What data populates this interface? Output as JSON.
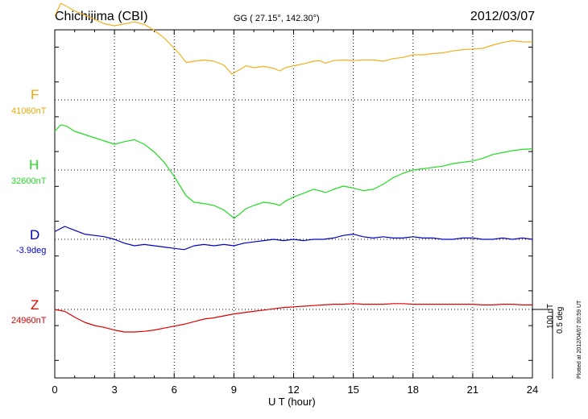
{
  "header": {
    "station": "Chichijima (CBI)",
    "coords": "GG ( 27.15°, 142.30°)",
    "date": "2012/03/07"
  },
  "labels": {
    "F": "F",
    "F_base": "41060nT",
    "H": "H",
    "H_base": "32600nT",
    "D": "D",
    "D_base": "-3.9deg",
    "Z": "Z",
    "Z_base": "24960nT"
  },
  "scale": {
    "line1": "100 nT",
    "line2": "0.5 deg"
  },
  "plotted": "Plotted at 2012/04/07 00:59 UT",
  "chart_data": {
    "type": "line",
    "xlabel": "U T (hour)",
    "xlim": [
      0,
      24
    ],
    "xticks": [
      "0",
      "3",
      "6",
      "9",
      "12",
      "15",
      "18",
      "21",
      "24"
    ],
    "grid": true,
    "series": [
      {
        "name": "F",
        "color": "#f0b020",
        "baseline": "41060nT",
        "x": [
          0,
          0.3,
          0.6,
          1,
          1.5,
          2,
          2.5,
          3,
          3.5,
          4,
          4.5,
          5,
          5.5,
          6,
          6.3,
          6.6,
          7,
          7.5,
          8,
          8.5,
          8.9,
          9,
          9.3,
          9.6,
          10,
          10.5,
          11,
          11.3,
          11.6,
          12,
          12.5,
          13,
          13.3,
          13.6,
          14,
          14.5,
          15,
          15.5,
          16,
          16.5,
          17,
          17.5,
          18,
          18.5,
          19,
          19.5,
          20,
          20.5,
          21,
          21.5,
          22,
          22.5,
          23,
          23.5,
          24
        ],
        "y": [
          130,
          150,
          145,
          138,
          132,
          125,
          118,
          115,
          118,
          121,
          117,
          108,
          96,
          80,
          70,
          58,
          60,
          62,
          60,
          54,
          40,
          42,
          47,
          53,
          50,
          52,
          49,
          45,
          50,
          53,
          56,
          60,
          61,
          57,
          61,
          62,
          61,
          62,
          62,
          60,
          64,
          66,
          70,
          70,
          72,
          73,
          76,
          78,
          79,
          80,
          85,
          89,
          92,
          90,
          90
        ]
      },
      {
        "name": "H",
        "color": "#22dd22",
        "baseline": "32600nT",
        "x": [
          0,
          0.3,
          0.6,
          1,
          1.5,
          2,
          2.5,
          3,
          3.5,
          4,
          4.5,
          5,
          5.5,
          6,
          6.3,
          6.6,
          7,
          7.5,
          8,
          8.5,
          8.9,
          9,
          9.3,
          9.6,
          10,
          10.5,
          11,
          11.3,
          11.6,
          12,
          12.5,
          13,
          13.3,
          13.6,
          14,
          14.5,
          15,
          15.5,
          16,
          16.5,
          17,
          17.5,
          18,
          18.5,
          19,
          19.5,
          20,
          20.5,
          21,
          21.5,
          22,
          22.5,
          23,
          23.5,
          24
        ],
        "y": [
          60,
          70,
          68,
          60,
          55,
          50,
          45,
          40,
          44,
          47,
          40,
          28,
          12,
          -10,
          -25,
          -40,
          -50,
          -52,
          -55,
          -62,
          -72,
          -75,
          -68,
          -60,
          -55,
          -50,
          -52,
          -55,
          -48,
          -42,
          -36,
          -30,
          -32,
          -35,
          -30,
          -25,
          -28,
          -32,
          -30,
          -22,
          -12,
          -5,
          0,
          2,
          4,
          6,
          10,
          12,
          14,
          18,
          24,
          27,
          30,
          32,
          33
        ]
      },
      {
        "name": "D",
        "color": "#0000c8",
        "baseline": "-3.9deg",
        "x": [
          0,
          0.5,
          1,
          1.5,
          2,
          2.5,
          3,
          3.5,
          4,
          4.5,
          5,
          5.5,
          6,
          6.5,
          7,
          7.5,
          8,
          8.5,
          9,
          9.5,
          10,
          10.5,
          11,
          11.5,
          12,
          12.5,
          13,
          13.5,
          14,
          14.5,
          15,
          15.5,
          16,
          16.5,
          17,
          17.5,
          18,
          18.5,
          19,
          19.5,
          20,
          20.5,
          21,
          21.5,
          22,
          22.5,
          23,
          23.5,
          24
        ],
        "y": [
          0.06,
          0.1,
          0.07,
          0.04,
          0.03,
          0.02,
          0.0,
          -0.03,
          -0.05,
          -0.04,
          -0.05,
          -0.06,
          -0.07,
          -0.08,
          -0.05,
          -0.04,
          -0.05,
          -0.04,
          -0.05,
          -0.03,
          -0.02,
          -0.01,
          0.0,
          -0.01,
          0.0,
          -0.01,
          0.0,
          0.0,
          0.01,
          0.03,
          0.04,
          0.02,
          0.01,
          0.02,
          0.01,
          0.01,
          0.02,
          0.01,
          0.01,
          0.0,
          0.0,
          0.01,
          0.01,
          0.0,
          0.0,
          0.01,
          0.0,
          0.01,
          0.0
        ]
      },
      {
        "name": "Z",
        "color": "#e00000",
        "baseline": "24960nT",
        "x": [
          0,
          0.5,
          1,
          1.5,
          2,
          2.5,
          3,
          3.5,
          4,
          4.5,
          5,
          5.5,
          6,
          6.5,
          7,
          7.5,
          8,
          8.5,
          9,
          9.5,
          10,
          10.5,
          11,
          11.5,
          12,
          12.5,
          13,
          13.5,
          14,
          14.5,
          15,
          15.5,
          16,
          16.5,
          17,
          17.5,
          18,
          18.5,
          19,
          19.5,
          20,
          20.5,
          21,
          21.5,
          22,
          22.5,
          23,
          23.5,
          24
        ],
        "y": [
          0,
          -3,
          -12,
          -20,
          -25,
          -28,
          -32,
          -35,
          -35,
          -34,
          -32,
          -29,
          -26,
          -23,
          -19,
          -15,
          -13,
          -10,
          -7,
          -5,
          -3,
          -1,
          1,
          3,
          4,
          5,
          6,
          7,
          8,
          8,
          9,
          8,
          8,
          8,
          9,
          9,
          8,
          8,
          8,
          8,
          8,
          8,
          8,
          7,
          7,
          8,
          8,
          7,
          7
        ]
      }
    ]
  }
}
